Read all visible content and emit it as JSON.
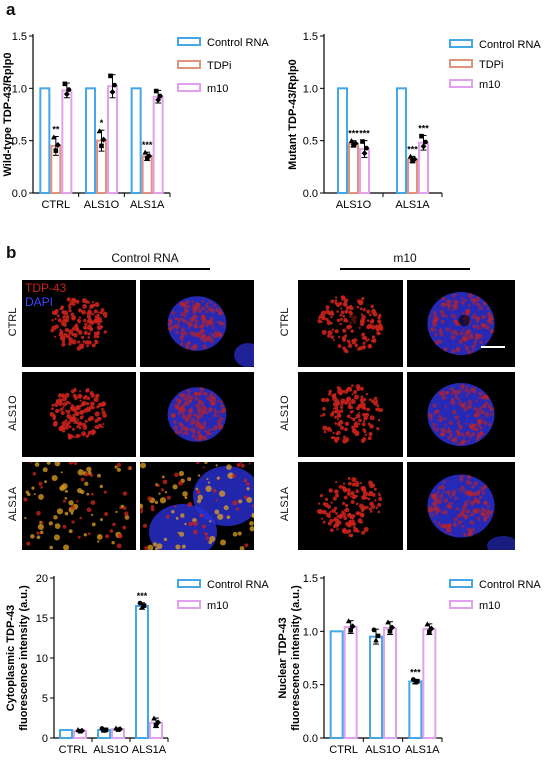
{
  "panel_a_label": "a",
  "panel_b_label": "b",
  "colors": {
    "control": "#43a7e8",
    "tdpi": "#e0937c",
    "m10": "#e3a0ee",
    "nucleus": "#c8221c",
    "dapi": "#2b30d6"
  },
  "micrographs": {
    "control_title": "Control RNA",
    "m10_title": "m10",
    "stain_tdp": "TDP-43",
    "stain_dapi": "DAPI",
    "rows": [
      "CTRL",
      "ALS1O",
      "ALS1A"
    ]
  },
  "chart_data": [
    {
      "type": "bar",
      "categories": [
        "CTRL",
        "ALS1O",
        "ALS1A"
      ],
      "ylabel": "Wild-type TDP-43/Rplp0",
      "yticks": [
        "0.0",
        "0.5",
        "1.0",
        "1.5"
      ],
      "ylim": [
        0,
        1.5
      ],
      "legend_position": "top-right",
      "series": [
        {
          "name": "Control RNA",
          "values": [
            1.0,
            1.0,
            1.0
          ],
          "err": [
            0,
            0,
            0
          ],
          "sig": [
            "",
            "",
            ""
          ]
        },
        {
          "name": "TDPi",
          "values": [
            0.45,
            0.5,
            0.35
          ],
          "err": [
            0.09,
            0.1,
            0.04
          ],
          "sig": [
            "**",
            "*",
            "***"
          ]
        },
        {
          "name": "m10",
          "values": [
            0.98,
            1.02,
            0.92
          ],
          "err": [
            0.07,
            0.11,
            0.06
          ],
          "sig": [
            "",
            "",
            ""
          ]
        }
      ]
    },
    {
      "type": "bar",
      "categories": [
        "ALS1O",
        "ALS1A"
      ],
      "ylabel": "Mutant TDP-43/Rplp0",
      "yticks": [
        "0.0",
        "0.5",
        "1.0",
        "1.5"
      ],
      "ylim": [
        0,
        1.5
      ],
      "legend_position": "top-right",
      "series": [
        {
          "name": "Control RNA",
          "values": [
            1.0,
            1.0
          ],
          "err": [
            0,
            0
          ],
          "sig": [
            "",
            ""
          ]
        },
        {
          "name": "TDPi",
          "values": [
            0.47,
            0.32
          ],
          "err": [
            0.03,
            0.03
          ],
          "sig": [
            "***",
            "***"
          ]
        },
        {
          "name": "m10",
          "values": [
            0.42,
            0.48
          ],
          "err": [
            0.08,
            0.07
          ],
          "sig": [
            "***",
            "***"
          ]
        }
      ]
    },
    {
      "type": "bar",
      "categories": [
        "CTRL",
        "ALS1O",
        "ALS1A"
      ],
      "ylabel": "Cytoplasmic TDP-43 fluorescence intensity (a.u.)",
      "ylabel_lines": [
        "Cytoplasmic TDP-43",
        "fluorescence intensity (a.u.)"
      ],
      "yticks": [
        "0",
        "5",
        "10",
        "15",
        "20"
      ],
      "ylim": [
        0,
        20
      ],
      "legend_position": "top-right",
      "series": [
        {
          "name": "Control RNA",
          "values": [
            1.0,
            1.0,
            16.5
          ],
          "err": [
            0,
            0.2,
            0.4
          ],
          "sig": [
            "",
            "",
            "***"
          ]
        },
        {
          "name": "m10",
          "values": [
            0.9,
            1.1,
            1.9
          ],
          "err": [
            0.1,
            0.1,
            0.6
          ],
          "sig": [
            "",
            "",
            ""
          ]
        }
      ]
    },
    {
      "type": "bar",
      "categories": [
        "CTRL",
        "ALS1O",
        "ALS1A"
      ],
      "ylabel": "Nuclear TDP-43 fluorescence intensity (a.u.)",
      "ylabel_lines": [
        "Nuclear TDP-43",
        "fluorescence intensity (a.u.)"
      ],
      "yticks": [
        "0.0",
        "0.5",
        "1.0",
        "1.5"
      ],
      "ylim": [
        0,
        1.5
      ],
      "legend_position": "top-right",
      "series": [
        {
          "name": "Control RNA",
          "values": [
            1.0,
            0.95,
            0.53
          ],
          "err": [
            0,
            0.07,
            0.02
          ],
          "sig": [
            "",
            "",
            "***"
          ]
        },
        {
          "name": "m10",
          "values": [
            1.04,
            1.03,
            1.02
          ],
          "err": [
            0.06,
            0.06,
            0.05
          ],
          "sig": [
            "",
            "",
            ""
          ]
        }
      ]
    }
  ]
}
